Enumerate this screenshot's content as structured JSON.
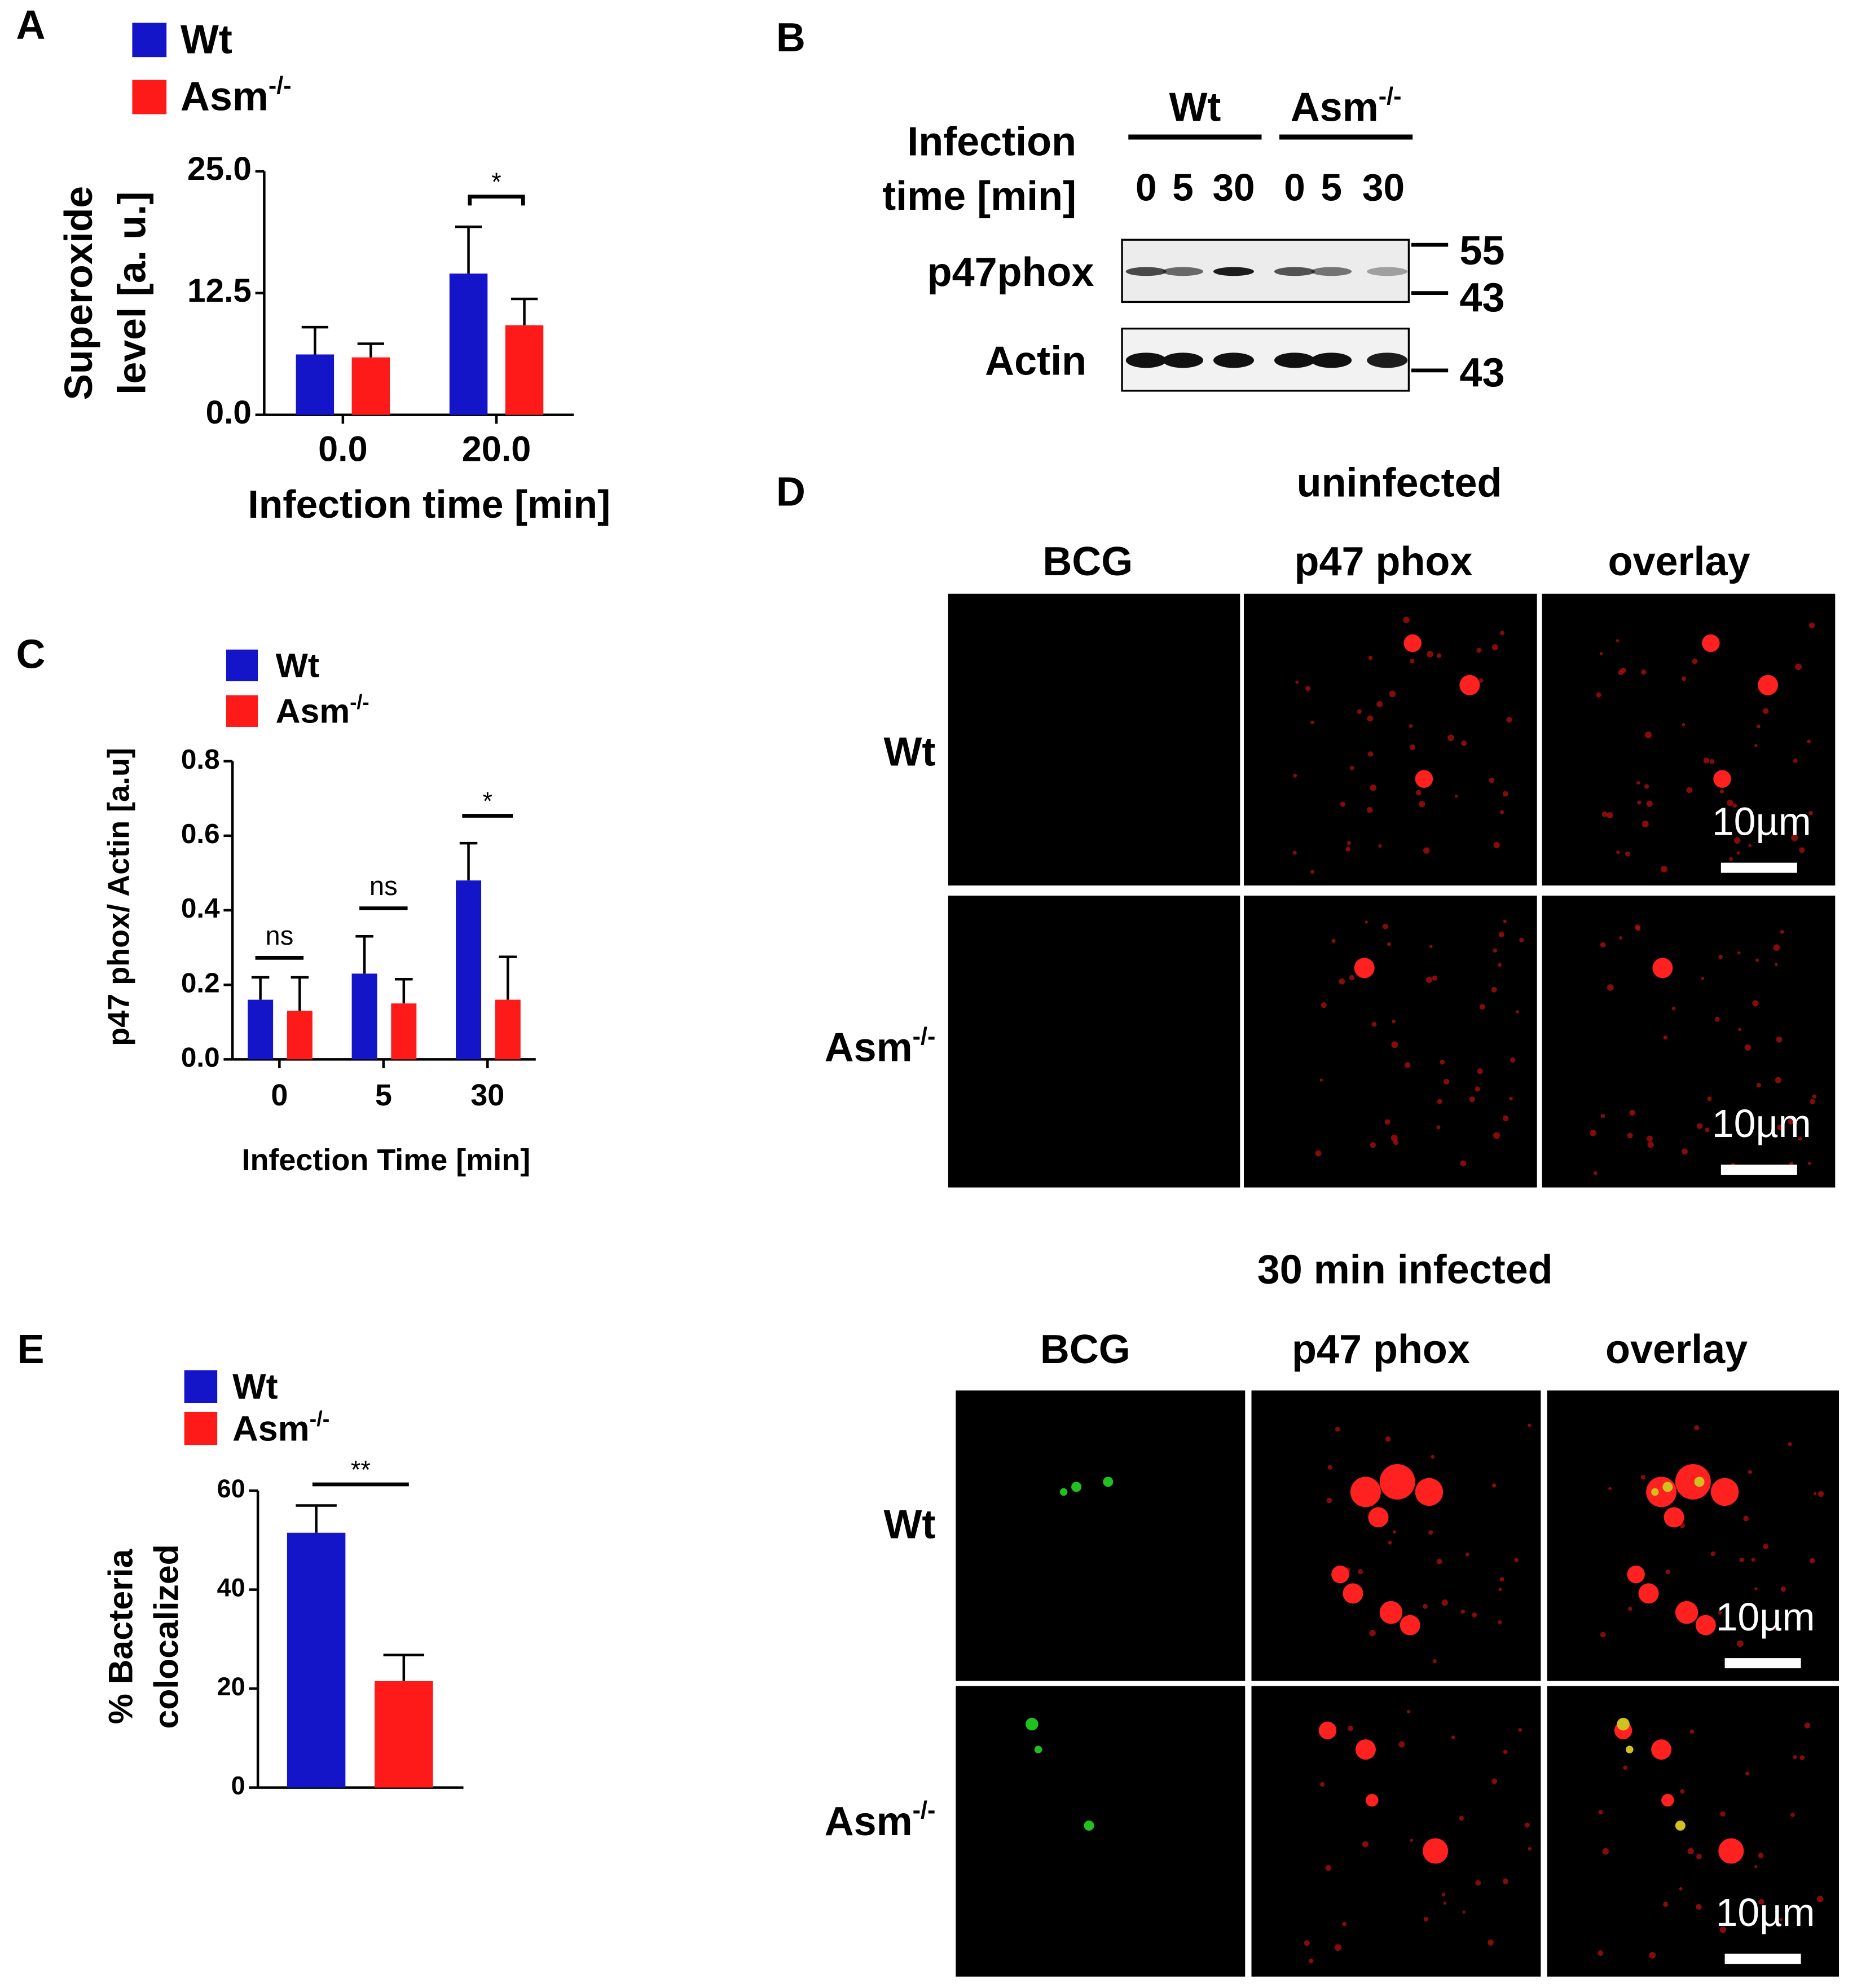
{
  "chart_data": [
    {
      "panel": "A",
      "type": "bar",
      "categories": [
        "0.0",
        "20.0"
      ],
      "series": [
        {
          "name": "Wt",
          "color": "#1414c8",
          "values": [
            6.2,
            14.5
          ],
          "errors": [
            2.8,
            4.8
          ]
        },
        {
          "name": "Asm",
          "name_superscript": "-/-",
          "color": "#ff1a1a",
          "values": [
            5.9,
            9.2
          ],
          "errors": [
            1.4,
            2.7
          ]
        }
      ],
      "ylim": [
        0,
        25
      ],
      "yticks": [
        {
          "value": 0,
          "label": "0.0"
        },
        12.5,
        {
          "value": 25,
          "label": "25.0"
        }
      ],
      "y_label": [
        "Superoxide",
        "level [a. u.]"
      ],
      "x_label": "Infection time [min]",
      "significance": [
        null,
        "*"
      ]
    },
    {
      "panel": "C",
      "type": "bar",
      "categories": [
        "0",
        "5",
        "30"
      ],
      "series": [
        {
          "name": "Wt",
          "color": "#1414c8",
          "values": [
            0.16,
            0.23,
            0.48
          ],
          "errors": [
            0.06,
            0.1,
            0.1
          ]
        },
        {
          "name": "Asm",
          "name_superscript": "-/-",
          "color": "#ff1a1a",
          "values": [
            0.13,
            0.15,
            0.16
          ],
          "errors": [
            0.09,
            0.065,
            0.115
          ]
        }
      ],
      "ylim": [
        0,
        0.8
      ],
      "yticks": [
        {
          "value": 0,
          "label": "0.0"
        },
        0.2,
        0.4,
        0.6,
        0.8
      ],
      "y_label": [
        "p47 phox/ Actin [a.u]"
      ],
      "x_label": "Infection Time [min]",
      "significance": [
        "ns",
        "ns",
        "*"
      ]
    },
    {
      "panel": "E",
      "type": "bar",
      "categories": [
        null
      ],
      "series": [
        {
          "name": "Wt",
          "color": "#1414c8",
          "values": [
            51.5
          ],
          "errors": [
            5.5
          ]
        },
        {
          "name": "Asm",
          "name_superscript": "-/-",
          "color": "#ff1a1a",
          "values": [
            21.5
          ],
          "errors": [
            5.3
          ]
        }
      ],
      "ylim": [
        0,
        60
      ],
      "yticks": [
        0,
        20,
        40,
        60
      ],
      "y_label": [
        "% Bacteria",
        "colocalized"
      ],
      "significance": [
        "**"
      ]
    }
  ],
  "blot": {
    "panel": "B",
    "row_label": [
      "Infection",
      "time [min]"
    ],
    "groups": [
      {
        "name": "Wt",
        "lanes": [
          "0",
          "5",
          "30"
        ]
      },
      {
        "name": "Asm",
        "name_superscript": "-/-",
        "lanes": [
          "0",
          "5",
          "30"
        ]
      }
    ],
    "blots": [
      {
        "name": "p47phox",
        "markers": [
          55,
          43
        ]
      },
      {
        "name": "Actin",
        "markers": [
          43
        ]
      }
    ]
  },
  "micrographs": {
    "panel": "D",
    "sections": [
      {
        "title": "uninfected",
        "columns": [
          "BCG",
          "p47 phox",
          "overlay"
        ],
        "rows": [
          {
            "name": "Wt"
          },
          {
            "name": "Asm",
            "name_superscript": "-/-"
          }
        ],
        "scale_bar": "10µm"
      },
      {
        "title": "30 min infected",
        "columns": [
          "BCG",
          "p47 phox",
          "overlay"
        ],
        "rows": [
          {
            "name": "Wt"
          },
          {
            "name": "Asm",
            "name_superscript": "-/-"
          }
        ],
        "scale_bar": "10µm"
      }
    ]
  }
}
